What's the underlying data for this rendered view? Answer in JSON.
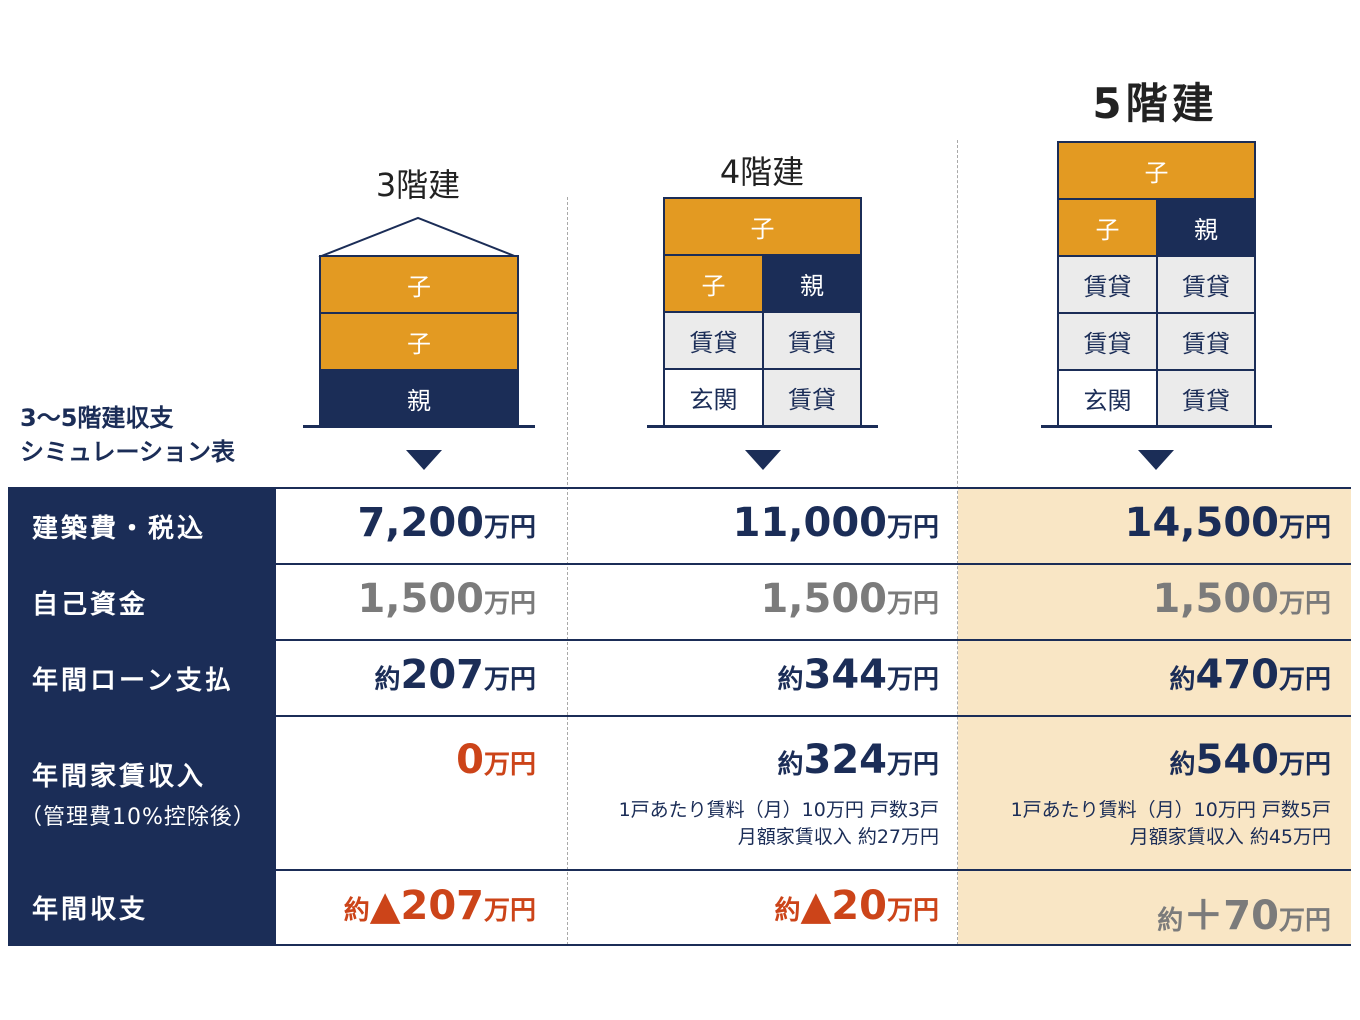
{
  "table_title": [
    "3〜5階建収支",
    "シミュレーション表"
  ],
  "buildings": [
    {
      "title": "3階建",
      "rows": [
        [
          "子"
        ],
        [
          "子"
        ],
        [
          "親"
        ]
      ]
    },
    {
      "title": "4階建",
      "rows": [
        [
          "子"
        ],
        [
          "子",
          "親"
        ],
        [
          "賃貸",
          "賃貸"
        ],
        [
          "玄関",
          "賃貸"
        ]
      ]
    },
    {
      "title": "5階建",
      "rows": [
        [
          "子"
        ],
        [
          "子",
          "親"
        ],
        [
          "賃貸",
          "賃貸"
        ],
        [
          "賃貸",
          "賃貸"
        ],
        [
          "玄関",
          "賃貸"
        ]
      ]
    }
  ],
  "row_labels": {
    "construction_cost": "建築費・税込",
    "own_funds": "自己資金",
    "annual_loan": "年間ローン支払",
    "annual_rent": "年間家賃収入",
    "annual_rent_note": "（管理費10%控除後）",
    "annual_balance": "年間収支"
  },
  "values": {
    "unit": "万円",
    "approx": "約",
    "construction_cost": [
      "7,200",
      "11,000",
      "14,500"
    ],
    "own_funds": [
      "1,500",
      "1,500",
      "1,500"
    ],
    "annual_loan": [
      "207",
      "344",
      "470"
    ],
    "annual_rent": [
      "0",
      "324",
      "540"
    ],
    "annual_balance": [
      "▲207",
      "▲20",
      "＋70"
    ]
  },
  "rent_notes": [
    null,
    [
      "1戸あたり賃料（月）10万円 戸数3戸",
      "月額家賃収入 約27万円"
    ],
    [
      "1戸あたり賃料（月）10万円 戸数5戸",
      "月額家賃収入 約45万円"
    ]
  ],
  "colors": {
    "navy": "#1b2d57",
    "orange": "#e39a22",
    "rent_gray": "#ebebeb",
    "highlight": "#f9e6c5",
    "negative_red": "#cc4419",
    "muted_gray": "#7b7b7b"
  }
}
